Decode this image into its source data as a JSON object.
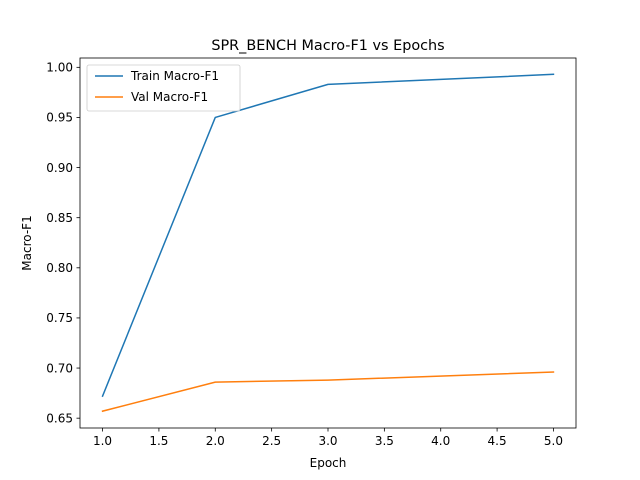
{
  "chart_data": {
    "type": "line",
    "title": "SPR_BENCH Macro-F1 vs Epochs",
    "xlabel": "Epoch",
    "ylabel": "Macro-F1",
    "x": [
      1.0,
      2.0,
      3.0,
      5.0
    ],
    "series": [
      {
        "name": "Train Macro-F1",
        "color": "#1f77b4",
        "values": [
          0.672,
          0.95,
          0.983,
          0.993
        ]
      },
      {
        "name": "Val Macro-F1",
        "color": "#ff7f0e",
        "values": [
          0.657,
          0.686,
          0.688,
          0.696
        ]
      }
    ],
    "xlim": [
      0.8,
      5.2
    ],
    "ylim": [
      0.6402,
      1.0093
    ],
    "xticks": [
      1.0,
      1.5,
      2.0,
      2.5,
      3.0,
      3.5,
      4.0,
      4.5,
      5.0
    ],
    "xtick_labels": [
      "1.0",
      "1.5",
      "2.0",
      "2.5",
      "3.0",
      "3.5",
      "4.0",
      "4.5",
      "5.0"
    ],
    "yticks": [
      0.65,
      0.7,
      0.75,
      0.8,
      0.85,
      0.9,
      0.95,
      1.0
    ],
    "ytick_labels": [
      "0.65",
      "0.70",
      "0.75",
      "0.80",
      "0.85",
      "0.90",
      "0.95",
      "1.00"
    ],
    "grid": false,
    "legend_position": "upper left"
  }
}
